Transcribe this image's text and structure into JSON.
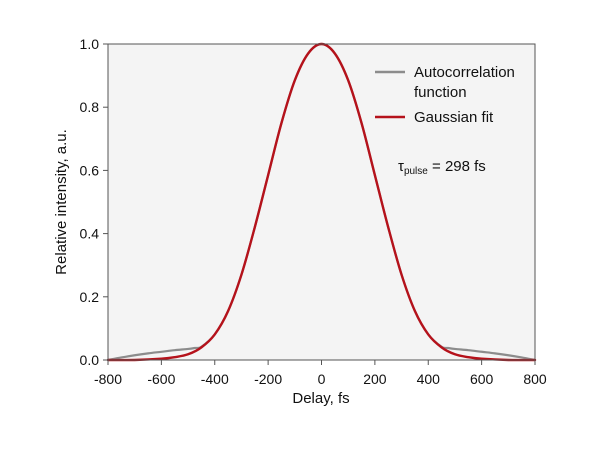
{
  "chart_data": {
    "type": "line",
    "title": "",
    "xlabel": "Delay, fs",
    "ylabel": "Relative intensity, a.u.",
    "xlim": [
      -800,
      800
    ],
    "ylim": [
      0,
      1.0
    ],
    "xticks": [
      -800,
      -600,
      -400,
      -200,
      0,
      200,
      400,
      600,
      800
    ],
    "yticks": [
      0.0,
      0.2,
      0.4,
      0.6,
      0.8,
      1.0
    ],
    "xtick_labels": [
      "-800",
      "-600",
      "-400",
      "-200",
      "0",
      "200",
      "400",
      "600",
      "800"
    ],
    "ytick_labels": [
      "0.0",
      "0.2",
      "0.4",
      "0.6",
      "0.8",
      "1.0"
    ],
    "grid": false,
    "legend_position": "top-right",
    "background_color": "#f4f4f4",
    "series": [
      {
        "name": "Autocorrelation function",
        "color": "#8c8c8c",
        "x": [
          -800,
          -750,
          -700,
          -650,
          -600,
          -550,
          -500,
          -475,
          -450,
          -400,
          -350,
          -300,
          -250,
          -200,
          -150,
          -100,
          -50,
          0,
          50,
          100,
          150,
          200,
          250,
          300,
          350,
          400,
          450,
          475,
          500,
          550,
          600,
          650,
          700,
          750,
          800
        ],
        "y": [
          0.0,
          0.008,
          0.015,
          0.021,
          0.026,
          0.031,
          0.035,
          0.038,
          0.042,
          0.081,
          0.155,
          0.27,
          0.42,
          0.585,
          0.75,
          0.885,
          0.97,
          1.0,
          0.97,
          0.885,
          0.75,
          0.585,
          0.42,
          0.27,
          0.155,
          0.081,
          0.042,
          0.038,
          0.035,
          0.031,
          0.026,
          0.021,
          0.015,
          0.008,
          0.0
        ]
      },
      {
        "name": "Gaussian fit",
        "color": "#b5121b",
        "x": [
          -800,
          -700,
          -600,
          -550,
          -500,
          -450,
          -400,
          -350,
          -300,
          -250,
          -200,
          -150,
          -100,
          -50,
          0,
          50,
          100,
          150,
          200,
          250,
          300,
          350,
          400,
          450,
          500,
          550,
          600,
          700,
          800
        ],
        "y": [
          0.0,
          0.0,
          0.004,
          0.009,
          0.018,
          0.04,
          0.081,
          0.155,
          0.27,
          0.42,
          0.585,
          0.75,
          0.885,
          0.97,
          1.0,
          0.97,
          0.885,
          0.75,
          0.585,
          0.42,
          0.27,
          0.155,
          0.081,
          0.04,
          0.018,
          0.009,
          0.004,
          0.0,
          0.0
        ]
      }
    ],
    "annotations": [
      {
        "text_main": "τ",
        "text_sub": "pulse",
        "text_rest": " = 298 fs"
      }
    ]
  }
}
